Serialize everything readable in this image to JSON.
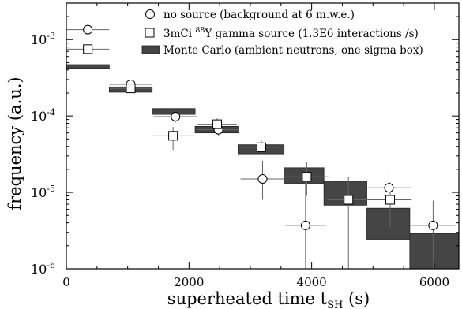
{
  "chart_data": {
    "type": "scatter",
    "xlabel": "superheated time t",
    "xlabel_sub": "SH",
    "xlabel_unit": "(s)",
    "ylabel": "frequency (a.u.)",
    "xlim": [
      0,
      6400
    ],
    "ylim": [
      1e-06,
      0.003
    ],
    "yscale": "log",
    "x_ticks": [
      0,
      2000,
      4000,
      6000
    ],
    "x_tick_labels": [
      "0",
      "2000",
      "4000",
      "6000"
    ],
    "y_ticks": [
      1e-06,
      1e-05,
      0.0001,
      0.001
    ],
    "y_tick_base": "10",
    "y_tick_exps": [
      "-6",
      "-5",
      "-4",
      "-3"
    ],
    "legend": {
      "position": "top-right",
      "items": [
        {
          "marker": "circle",
          "text": "no source (background at 6 m.w.e.)"
        },
        {
          "marker": "square",
          "text_pre": "3mCi ",
          "text_sup": "88",
          "text_post": "Y  gamma source (1.3E6 interactions /s)"
        },
        {
          "marker": "box",
          "text": "Monte Carlo (ambient neutrons, one sigma box)"
        }
      ]
    },
    "series": [
      {
        "name": "no source (background at 6 m.w.e.)",
        "marker": "circle",
        "points": [
          {
            "x": 350,
            "y": 0.00135,
            "xerr": 350,
            "ylo": 0.00135,
            "yhi": 0.00135
          },
          {
            "x": 1050,
            "y": 0.00026,
            "xerr": 350,
            "ylo": 0.00023,
            "yhi": 0.00029
          },
          {
            "x": 1780,
            "y": 9.8e-05,
            "xerr": 360,
            "ylo": 8.2e-05,
            "yhi": 0.000115
          },
          {
            "x": 2480,
            "y": 6.6e-05,
            "xerr": 340,
            "ylo": 5.4e-05,
            "yhi": 8e-05
          },
          {
            "x": 3200,
            "y": 1.5e-05,
            "xerr": 360,
            "ylo": 8e-06,
            "yhi": 2.6e-05
          },
          {
            "x": 3900,
            "y": 3.7e-06,
            "xerr": 330,
            "ylo": 1e-06,
            "yhi": 1.5e-05
          },
          {
            "x": 5260,
            "y": 1.15e-05,
            "xerr": 350,
            "ylo": 5.5e-06,
            "yhi": 2.1e-05
          },
          {
            "x": 5980,
            "y": 3.7e-06,
            "xerr": 360,
            "ylo": 1e-06,
            "yhi": 7.8e-06
          }
        ]
      },
      {
        "name": "3mCi 88Y gamma source (1.3E6 interactions /s)",
        "marker": "square",
        "points": [
          {
            "x": 350,
            "y": 0.00075,
            "xerr": 350,
            "ylo": 0.00075,
            "yhi": 0.00075
          },
          {
            "x": 1050,
            "y": 0.00023,
            "xerr": 350,
            "ylo": 0.000205,
            "yhi": 0.000255
          },
          {
            "x": 1740,
            "y": 5.5e-05,
            "xerr": 350,
            "ylo": 3.6e-05,
            "yhi": 7.2e-05
          },
          {
            "x": 2460,
            "y": 7.8e-05,
            "xerr": 320,
            "ylo": 6.4e-05,
            "yhi": 9.3e-05
          },
          {
            "x": 3180,
            "y": 3.9e-05,
            "xerr": 330,
            "ylo": 3.1e-05,
            "yhi": 4.8e-05
          },
          {
            "x": 3920,
            "y": 1.6e-05,
            "xerr": 350,
            "ylo": 9e-06,
            "yhi": 2.5e-05
          },
          {
            "x": 4600,
            "y": 8e-06,
            "xerr": 350,
            "ylo": 1e-06,
            "yhi": 1.6e-05
          },
          {
            "x": 5280,
            "y": 8e-06,
            "xerr": 350,
            "ylo": 3.5e-06,
            "yhi": 1.35e-05
          }
        ]
      },
      {
        "name": "Monte Carlo (ambient neutrons, one sigma box)",
        "marker": "box",
        "boxes": [
          {
            "x0": 0,
            "x1": 700,
            "y0": 0.00042,
            "y1": 0.00047
          },
          {
            "x0": 700,
            "x1": 1400,
            "y0": 0.000205,
            "y1": 0.00024
          },
          {
            "x0": 1400,
            "x1": 2100,
            "y0": 0.000105,
            "y1": 0.000125
          },
          {
            "x0": 2100,
            "x1": 2800,
            "y0": 6e-05,
            "y1": 7.3e-05
          },
          {
            "x0": 2800,
            "x1": 3550,
            "y0": 3.2e-05,
            "y1": 4.2e-05
          },
          {
            "x0": 3550,
            "x1": 4200,
            "y0": 1.3e-05,
            "y1": 2.1e-05
          },
          {
            "x0": 4200,
            "x1": 4900,
            "y0": 6.8e-06,
            "y1": 1.4e-05
          },
          {
            "x0": 4900,
            "x1": 5600,
            "y0": 2.4e-06,
            "y1": 6.2e-06
          },
          {
            "x0": 5600,
            "x1": 6400,
            "y0": 1e-06,
            "y1": 2.9e-06
          }
        ]
      }
    ]
  }
}
